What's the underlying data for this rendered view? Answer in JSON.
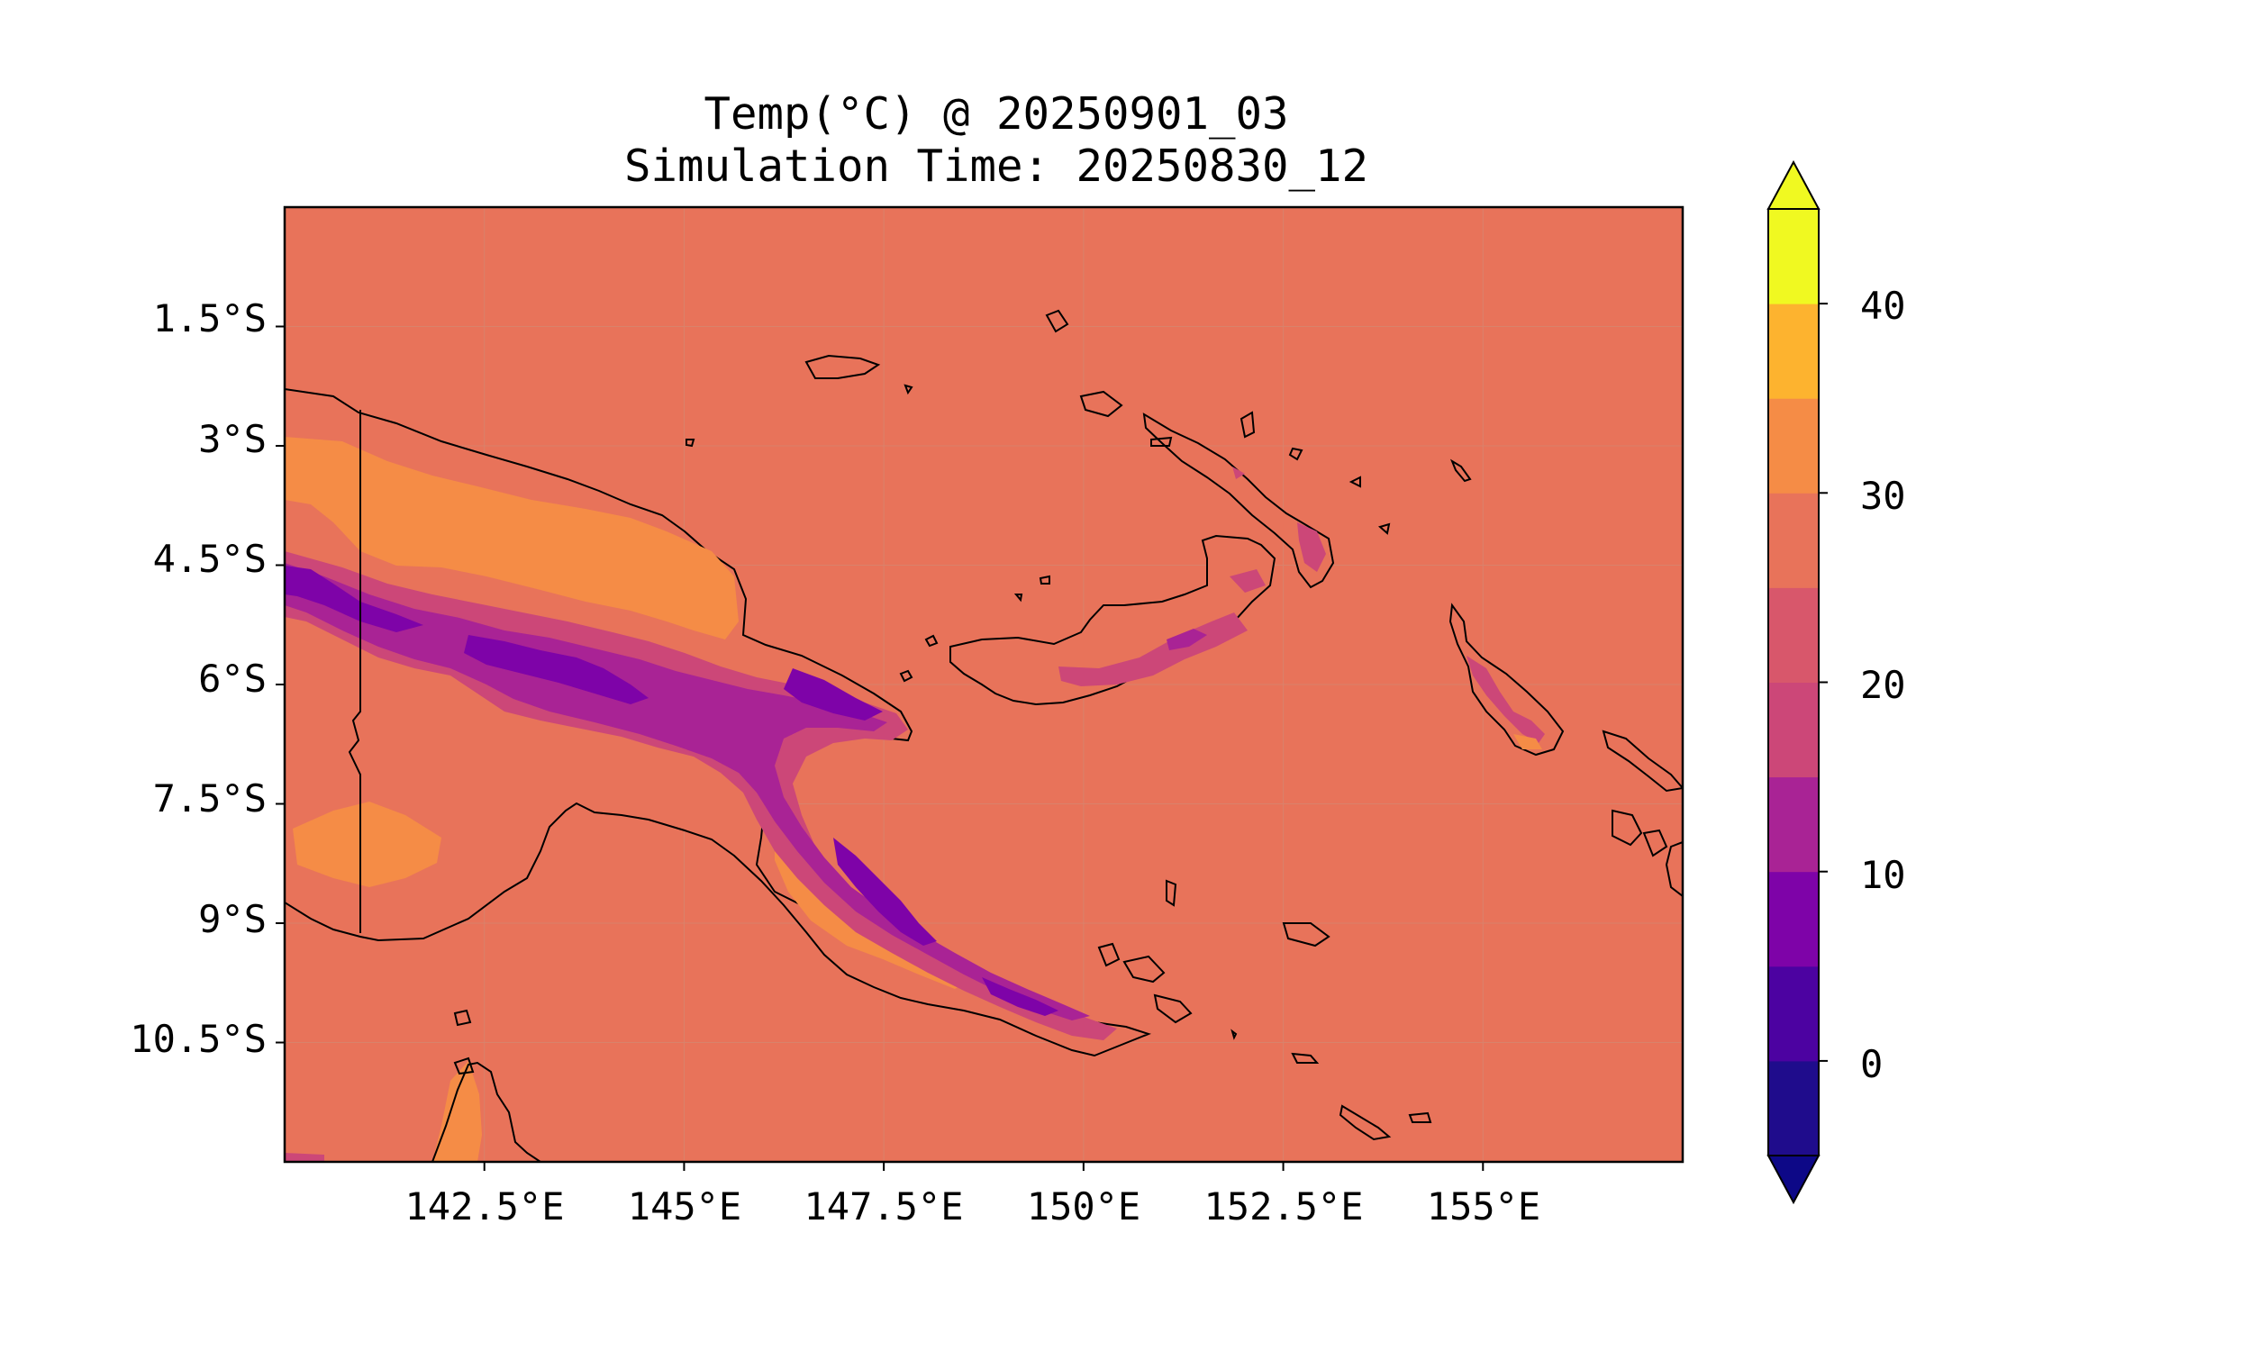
{
  "title": {
    "line1": "Temp(°C) @ 20250901_03",
    "line2": "Simulation Time: 20250830_12"
  },
  "map": {
    "lon_range": [
      140.0,
      157.5
    ],
    "lat_range_south": [
      0.0,
      12.0
    ],
    "grid": true,
    "ocean_color": "#e8735a",
    "coastline_color": "#000000",
    "lat_ticks": [
      "1.5°S",
      "3°S",
      "4.5°S",
      "6°S",
      "7.5°S",
      "9°S",
      "10.5°S"
    ],
    "lon_ticks": [
      "142.5°E",
      "145°E",
      "147.5°E",
      "150°E",
      "152.5°E",
      "155°E"
    ]
  },
  "colorbar": {
    "range": [
      -5,
      45
    ],
    "extend": "both",
    "ticks": [
      "0",
      "10",
      "20",
      "30",
      "40"
    ],
    "levels": [
      -5,
      0,
      5,
      10,
      15,
      20,
      25,
      30,
      35,
      40,
      45
    ],
    "colors": [
      "#1f0c8c",
      "#4c02a1",
      "#7e03a8",
      "#a92395",
      "#cc4778",
      "#d8576b",
      "#e8735a",
      "#f58c46",
      "#fdb32f",
      "#f0f921"
    ],
    "under_color": "#0d0887",
    "over_color": "#f0f921"
  }
}
